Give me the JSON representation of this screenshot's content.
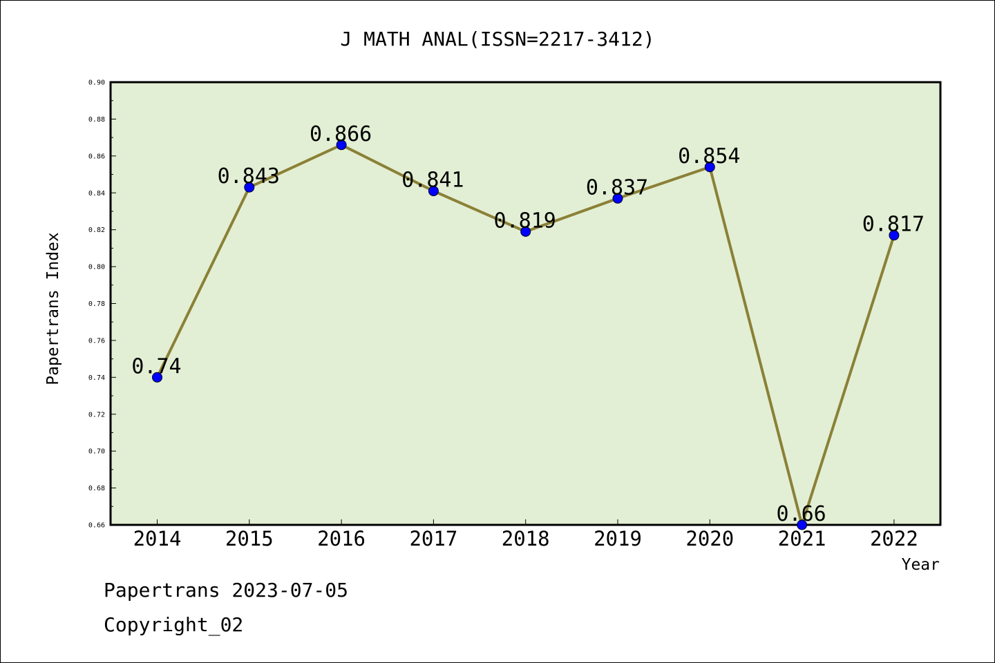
{
  "chart_data": {
    "type": "line",
    "title": "J MATH ANAL(ISSN=2217-3412)",
    "xlabel": "Year",
    "ylabel": "Papertrans Index",
    "categories": [
      "2014",
      "2015",
      "2016",
      "2017",
      "2018",
      "2019",
      "2020",
      "2021",
      "2022"
    ],
    "values": [
      0.74,
      0.843,
      0.866,
      0.841,
      0.819,
      0.837,
      0.854,
      0.66,
      0.817
    ],
    "data_labels": [
      "0.74",
      "0.843",
      "0.866",
      "0.841",
      "0.819",
      "0.837",
      "0.854",
      "0.66",
      "0.817"
    ],
    "ylim": [
      0.66,
      0.9
    ],
    "yticks": [
      "0.66",
      "0.68",
      "0.70",
      "0.72",
      "0.74",
      "0.76",
      "0.78",
      "0.80",
      "0.82",
      "0.84",
      "0.86",
      "0.88",
      "0.90"
    ],
    "grid": false,
    "line_color": "#8B8037",
    "marker_color": "#0000FF",
    "plot_background": "#E2EFD4"
  },
  "footer": {
    "line1": "Papertrans 2023-07-05",
    "line2": "Copyright_02"
  }
}
